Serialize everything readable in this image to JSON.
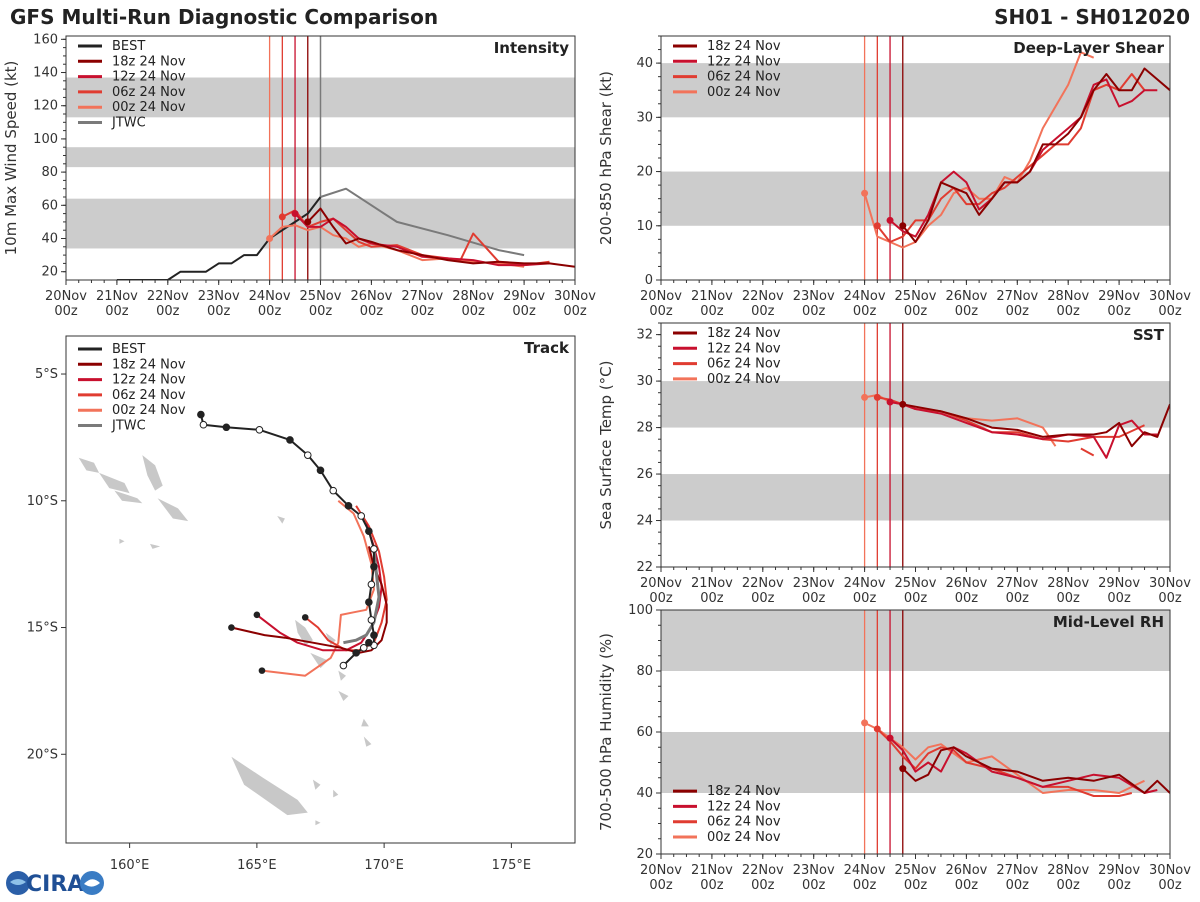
{
  "header": {
    "title": "GFS Multi-Run Diagnostic Comparison",
    "storm_id": "SH01 - SH012020"
  },
  "logo": {
    "text": "CIRA"
  },
  "colors": {
    "best": "#222222",
    "jtwc": "#7a7a7a",
    "run18": "#8b0000",
    "run12": "#c8102e",
    "run06": "#e03c31",
    "run00": "#f2735a",
    "band": "#cccccc",
    "land": "#c8c8c8"
  },
  "runs": [
    {
      "key": "run18",
      "label": "18z 24 Nov"
    },
    {
      "key": "run12",
      "label": "12z 24 Nov"
    },
    {
      "key": "run06",
      "label": "06z 24 Nov"
    },
    {
      "key": "run00",
      "label": "00z 24 Nov"
    }
  ],
  "time_axis": {
    "labels": [
      "20Nov",
      "21Nov",
      "22Nov",
      "23Nov",
      "24Nov",
      "25Nov",
      "26Nov",
      "27Nov",
      "28Nov",
      "29Nov",
      "30Nov"
    ],
    "sublabel": "00z",
    "range": [
      0,
      10
    ],
    "init_markers": [
      4.0,
      4.25,
      4.5,
      4.75
    ]
  },
  "chart_data": [
    {
      "id": "intensity",
      "type": "line",
      "title": "Intensity",
      "ylabel": "10m Max Wind Speed (kt)",
      "ylim": [
        15,
        162
      ],
      "yticks": [
        20,
        40,
        60,
        80,
        100,
        120,
        140,
        160
      ],
      "bands": [
        [
          34,
          64
        ],
        [
          83,
          95
        ],
        [
          113,
          137
        ]
      ],
      "has_best": true,
      "has_jtwc": true,
      "jtwc_marker": 5.0,
      "best": {
        "label": "BEST",
        "x": [
          1,
          1.5,
          2,
          2.25,
          2.5,
          2.75,
          3,
          3.25,
          3.5,
          3.75,
          4,
          4.25,
          4.5,
          4.75,
          5
        ],
        "y": [
          15,
          15,
          15,
          20,
          20,
          20,
          25,
          25,
          30,
          30,
          40,
          45,
          50,
          55,
          65
        ]
      },
      "jtwc": {
        "label": "JTWC",
        "x": [
          5,
          5.5,
          6.5,
          7.5,
          8.5,
          9
        ],
        "y": [
          65,
          70,
          50,
          42,
          33,
          30
        ]
      },
      "series": [
        {
          "key": "run18",
          "x": [
            4.75,
            5,
            5.25,
            5.5,
            5.75,
            6,
            6.5,
            7,
            7.5,
            8,
            8.5,
            9,
            9.5,
            10
          ],
          "y": [
            50,
            58,
            47,
            37,
            40,
            38,
            33,
            30,
            27,
            25,
            26,
            25,
            25,
            23
          ]
        },
        {
          "key": "run12",
          "x": [
            4.5,
            4.75,
            5,
            5.25,
            5.5,
            5.75,
            6,
            6.5,
            7,
            7.5,
            8,
            8.5,
            9,
            9.5
          ],
          "y": [
            55,
            47,
            47,
            52,
            47,
            40,
            37,
            35,
            29,
            28,
            27,
            24,
            24,
            25
          ]
        },
        {
          "key": "run06",
          "x": [
            4.25,
            4.5,
            4.75,
            5,
            5.25,
            5.5,
            5.75,
            6,
            6.5,
            7,
            7.5,
            7.75,
            8,
            8.5,
            9,
            9.5
          ],
          "y": [
            53,
            57,
            47,
            50,
            52,
            45,
            38,
            35,
            36,
            30,
            28,
            27,
            43,
            26,
            24,
            26
          ]
        },
        {
          "key": "run00",
          "x": [
            4,
            4.25,
            4.5,
            4.75,
            5,
            5.25,
            5.5,
            5.75,
            6,
            6.5,
            7,
            7.5,
            8,
            8.5,
            9
          ],
          "y": [
            40,
            47,
            48,
            45,
            47,
            42,
            40,
            35,
            37,
            33,
            27,
            28,
            26,
            25,
            23
          ]
        }
      ]
    },
    {
      "id": "shear",
      "type": "line",
      "title": "Deep-Layer Shear",
      "ylabel": "200-850 hPa Shear (kt)",
      "ylim": [
        0,
        45
      ],
      "yticks": [
        0,
        10,
        20,
        30,
        40
      ],
      "bands": [
        [
          10,
          20
        ],
        [
          30,
          40
        ]
      ],
      "series": [
        {
          "key": "run18",
          "x": [
            4.75,
            5,
            5.25,
            5.5,
            5.75,
            6,
            6.25,
            6.5,
            6.75,
            7,
            7.25,
            7.5,
            7.75,
            8,
            8.25,
            8.5,
            8.75,
            9,
            9.25,
            9.5,
            9.75,
            10
          ],
          "y": [
            10,
            7,
            11,
            18,
            17,
            16,
            12,
            15,
            18,
            18,
            20,
            25,
            25,
            27,
            30,
            35,
            38,
            35,
            35,
            39,
            37,
            35
          ]
        },
        {
          "key": "run12",
          "x": [
            4.5,
            4.75,
            5,
            5.25,
            5.5,
            5.75,
            6,
            6.25,
            6.5,
            6.75,
            7,
            7.25,
            7.5,
            7.75,
            8,
            8.25,
            8.5,
            8.75,
            9,
            9.25,
            9.5,
            9.75
          ],
          "y": [
            11,
            9,
            8,
            12,
            18,
            20,
            18,
            13,
            15,
            18,
            18,
            20,
            24,
            26,
            28,
            30,
            36,
            37,
            32,
            33,
            35,
            35
          ]
        },
        {
          "key": "run06",
          "x": [
            4.25,
            4.5,
            4.75,
            5,
            5.25,
            5.5,
            5.75,
            6,
            6.25,
            6.5,
            6.75,
            7,
            7.25,
            7.5,
            7.75,
            8,
            8.25,
            8.5,
            8.75,
            9,
            9.25,
            9.5
          ],
          "y": [
            10,
            7,
            8,
            11,
            11,
            15,
            17,
            14,
            14,
            16,
            17,
            19,
            21,
            23,
            25,
            25,
            28,
            35,
            36,
            35,
            38,
            35
          ]
        },
        {
          "key": "run00",
          "x": [
            4,
            4.25,
            4.5,
            4.75,
            5,
            5.25,
            5.5,
            5.75,
            6,
            6.25,
            6.5,
            6.75,
            7,
            7.25,
            7.5,
            7.75,
            8,
            8.25,
            8.5
          ],
          "y": [
            16,
            8,
            7,
            6,
            7,
            10,
            12,
            16,
            17,
            15,
            15,
            19,
            18,
            22,
            28,
            32,
            36,
            42,
            41
          ]
        }
      ]
    },
    {
      "id": "sst",
      "type": "line",
      "title": "SST",
      "ylabel": "Sea Surface Temp (°C)",
      "ylim": [
        22,
        32.5
      ],
      "yticks": [
        22,
        24,
        26,
        28,
        30,
        32
      ],
      "bands": [
        [
          24,
          26
        ],
        [
          28,
          30
        ]
      ],
      "series": [
        {
          "key": "run18",
          "x": [
            4.75,
            5,
            5.5,
            6,
            6.5,
            7,
            7.5,
            8,
            8.5,
            8.75,
            9,
            9.25,
            9.5,
            9.75,
            10
          ],
          "y": [
            29,
            28.9,
            28.7,
            28.4,
            28,
            27.9,
            27.6,
            27.7,
            27.7,
            27.8,
            28.2,
            27.2,
            27.8,
            27.6,
            29
          ]
        },
        {
          "key": "run12",
          "x": [
            4.5,
            4.75,
            5,
            5.5,
            6,
            6.5,
            7,
            7.5,
            8,
            8.5,
            8.75,
            9,
            9.25,
            9.5,
            9.75
          ],
          "y": [
            29.1,
            29,
            28.8,
            28.6,
            28.2,
            27.8,
            27.7,
            27.5,
            27.7,
            27.6,
            26.7,
            28.1,
            28.3,
            27.7,
            27.7
          ]
        },
        {
          "key": "run06",
          "x": [
            4.25,
            4.5,
            4.75,
            5,
            5.5,
            6,
            6.5,
            7,
            7.5,
            8,
            8.5,
            9,
            9.5
          ],
          "y": [
            29.3,
            29.2,
            29,
            28.8,
            28.7,
            28.3,
            27.8,
            27.8,
            27.5,
            27.4,
            27.6,
            27.6,
            28.1
          ]
        },
        {
          "key": "run00",
          "x": [
            4,
            4.25,
            4.5,
            4.75,
            5,
            5.5,
            6,
            6.5,
            7,
            7.5,
            7.75
          ],
          "y": [
            29.3,
            29.4,
            29.1,
            29,
            28.8,
            28.7,
            28.4,
            28.3,
            28.4,
            28,
            27.2
          ]
        }
      ],
      "extra_segments": [
        {
          "key": "run06",
          "x": [
            8.25,
            8.5
          ],
          "y": [
            27.1,
            26.8
          ]
        }
      ]
    },
    {
      "id": "rh",
      "type": "line",
      "title": "Mid-Level RH",
      "ylabel": "700-500 hPa Humidity (%)",
      "ylim": [
        20,
        100
      ],
      "yticks": [
        20,
        40,
        60,
        80,
        100
      ],
      "bands": [
        [
          40,
          60
        ],
        [
          80,
          100
        ]
      ],
      "legend_position": "bottom-left",
      "series": [
        {
          "key": "run18",
          "x": [
            4.75,
            5,
            5.25,
            5.5,
            5.75,
            6,
            6.5,
            7,
            7.5,
            8,
            8.5,
            9,
            9.5,
            9.75,
            10
          ],
          "y": [
            48,
            44,
            46,
            54,
            55,
            52,
            48,
            47,
            44,
            45,
            44,
            46,
            40,
            44,
            40
          ]
        },
        {
          "key": "run12",
          "x": [
            4.5,
            4.75,
            5,
            5.25,
            5.5,
            5.75,
            6,
            6.5,
            7,
            7.5,
            8,
            8.5,
            9,
            9.5,
            9.75
          ],
          "y": [
            58,
            54,
            47,
            50,
            47,
            55,
            53,
            47,
            45,
            42,
            44,
            46,
            45,
            40,
            41
          ]
        },
        {
          "key": "run06",
          "x": [
            4.25,
            4.5,
            4.75,
            5,
            5.25,
            5.5,
            5.75,
            6,
            6.5,
            7,
            7.5,
            8,
            8.5,
            9,
            9.25
          ],
          "y": [
            61,
            57,
            52,
            48,
            53,
            55,
            54,
            50,
            48,
            45,
            42,
            42,
            39,
            39,
            40
          ]
        },
        {
          "key": "run00",
          "x": [
            4,
            4.25,
            4.5,
            4.75,
            5,
            5.25,
            5.5,
            5.75,
            6,
            6.5,
            7,
            7.5,
            8,
            8.5,
            9,
            9.5
          ],
          "y": [
            63,
            61,
            58,
            55,
            51,
            55,
            56,
            53,
            50,
            52,
            46,
            40,
            41,
            41,
            40,
            44
          ]
        }
      ]
    },
    {
      "id": "track",
      "type": "scatter",
      "title": "Track",
      "lon_range": [
        157.5,
        177.5
      ],
      "lat_range": [
        -23.5,
        -3.5
      ],
      "lon_ticks": [
        160,
        165,
        170,
        175
      ],
      "lon_tick_labels": [
        "160°E",
        "165°E",
        "170°E",
        "175°E"
      ],
      "lat_ticks": [
        -5,
        -10,
        -15,
        -20
      ],
      "lat_tick_labels": [
        "5°S",
        "10°S",
        "15°S",
        "20°S"
      ],
      "has_best": true,
      "has_jtwc": true,
      "best": {
        "label": "BEST",
        "lon": [
          162.8,
          162.9,
          163.8,
          165.1,
          166.3,
          167.0,
          167.5,
          168.0,
          168.6,
          169.1,
          169.4,
          169.6,
          169.6,
          169.5,
          169.4,
          169.5,
          169.6,
          169.6,
          169.4,
          169.2,
          168.9,
          168.4
        ],
        "lat": [
          -6.6,
          -7.0,
          -7.1,
          -7.2,
          -7.6,
          -8.2,
          -8.8,
          -9.6,
          -10.2,
          -10.6,
          -11.2,
          -11.9,
          -12.6,
          -13.3,
          -14.0,
          -14.7,
          -15.3,
          -15.7,
          -15.6,
          -15.8,
          -16.0,
          -16.5
        ]
      },
      "jtwc": {
        "label": "JTWC",
        "lon": [
          169.6,
          169.7,
          169.8,
          169.6,
          169.3,
          168.9,
          168.4
        ],
        "lat": [
          -11.9,
          -12.9,
          -13.8,
          -14.8,
          -15.3,
          -15.5,
          -15.6
        ]
      },
      "series": [
        {
          "key": "run18",
          "lon": [
            169.4,
            169.6,
            169.9,
            170.1,
            170.1,
            169.9,
            169.5,
            169.0,
            168.3,
            167.2,
            166.1,
            165.3,
            164.0
          ],
          "lat": [
            -11.8,
            -12.6,
            -13.3,
            -14.1,
            -14.8,
            -15.5,
            -15.9,
            -16.0,
            -15.8,
            -15.6,
            -15.4,
            -15.3,
            -15.0
          ]
        },
        {
          "key": "run12",
          "lon": [
            169.3,
            169.6,
            169.8,
            169.9,
            169.8,
            169.5,
            169.1,
            168.5,
            167.6,
            166.6,
            165.9,
            165.0
          ],
          "lat": [
            -10.9,
            -11.8,
            -12.6,
            -13.4,
            -14.2,
            -15.0,
            -15.6,
            -15.9,
            -15.9,
            -15.6,
            -15.2,
            -14.5
          ]
        },
        {
          "key": "run06",
          "lon": [
            168.9,
            169.4,
            169.8,
            170.0,
            170.1,
            169.9,
            169.6,
            169.0,
            168.5,
            167.8,
            167.4,
            166.9
          ],
          "lat": [
            -10.2,
            -11.0,
            -12.0,
            -13.0,
            -13.9,
            -14.8,
            -15.6,
            -15.9,
            -15.9,
            -15.5,
            -15.0,
            -14.6
          ]
        },
        {
          "key": "run00",
          "lon": [
            168.2,
            168.8,
            169.2,
            169.5,
            169.6,
            169.3,
            168.8,
            168.3,
            168.2,
            167.9,
            166.9,
            165.2
          ],
          "lat": [
            -10.0,
            -10.5,
            -11.4,
            -12.5,
            -13.5,
            -14.3,
            -14.4,
            -14.5,
            -15.6,
            -16.2,
            -16.9,
            -16.7
          ]
        }
      ]
    }
  ]
}
